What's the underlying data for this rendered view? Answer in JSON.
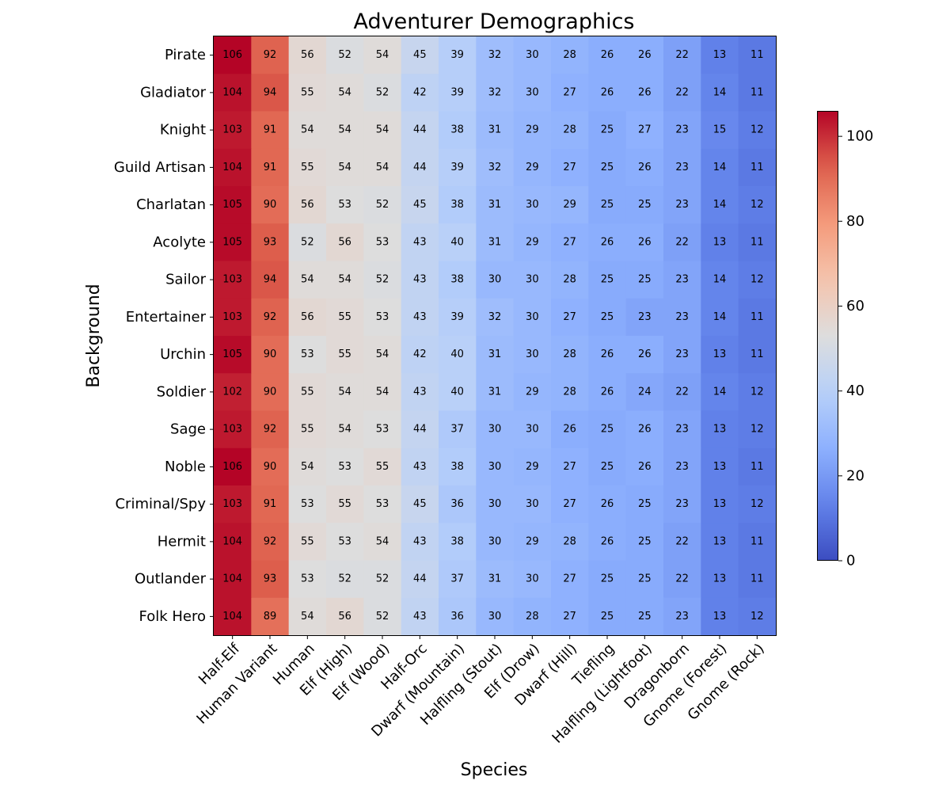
{
  "chart_data": {
    "type": "heatmap",
    "title": "Adventurer Demographics",
    "xlabel": "Species",
    "ylabel": "Background",
    "x_categories": [
      "Half-Elf",
      "Human Variant",
      "Human",
      "Elf (High)",
      "Elf (Wood)",
      "Half-Orc",
      "Dwarf (Mountain)",
      "Halfling (Stout)",
      "Elf (Drow)",
      "Dwarf (Hill)",
      "Tiefling",
      "Halfling (Lightfoot)",
      "Dragonborn",
      "Gnome (Forest)",
      "Gnome (Rock)"
    ],
    "y_categories": [
      "Pirate",
      "Gladiator",
      "Knight",
      "Guild Artisan",
      "Charlatan",
      "Acolyte",
      "Sailor",
      "Entertainer",
      "Urchin",
      "Soldier",
      "Sage",
      "Noble",
      "Criminal/Spy",
      "Hermit",
      "Outlander",
      "Folk Hero"
    ],
    "values": [
      [
        106,
        92,
        56,
        52,
        54,
        45,
        39,
        32,
        30,
        28,
        26,
        26,
        22,
        13,
        11
      ],
      [
        104,
        94,
        55,
        54,
        52,
        42,
        39,
        32,
        30,
        27,
        26,
        26,
        22,
        14,
        11
      ],
      [
        103,
        91,
        54,
        54,
        54,
        44,
        38,
        31,
        29,
        28,
        25,
        27,
        23,
        15,
        12
      ],
      [
        104,
        91,
        55,
        54,
        54,
        44,
        39,
        32,
        29,
        27,
        25,
        26,
        23,
        14,
        11
      ],
      [
        105,
        90,
        56,
        53,
        52,
        45,
        38,
        31,
        30,
        29,
        25,
        25,
        23,
        14,
        12
      ],
      [
        105,
        93,
        52,
        56,
        53,
        43,
        40,
        31,
        29,
        27,
        26,
        26,
        22,
        13,
        11
      ],
      [
        103,
        94,
        54,
        54,
        52,
        43,
        38,
        30,
        30,
        28,
        25,
        25,
        23,
        14,
        12
      ],
      [
        103,
        92,
        56,
        55,
        53,
        43,
        39,
        32,
        30,
        27,
        25,
        23,
        23,
        14,
        11
      ],
      [
        105,
        90,
        53,
        55,
        54,
        42,
        40,
        31,
        30,
        28,
        26,
        26,
        23,
        13,
        11
      ],
      [
        102,
        90,
        55,
        54,
        54,
        43,
        40,
        31,
        29,
        28,
        26,
        24,
        22,
        14,
        12
      ],
      [
        103,
        92,
        55,
        54,
        53,
        44,
        37,
        30,
        30,
        26,
        25,
        26,
        23,
        13,
        12
      ],
      [
        106,
        90,
        54,
        53,
        55,
        43,
        38,
        30,
        29,
        27,
        25,
        26,
        23,
        13,
        11
      ],
      [
        103,
        91,
        53,
        55,
        53,
        45,
        36,
        30,
        30,
        27,
        26,
        25,
        23,
        13,
        12
      ],
      [
        104,
        92,
        55,
        53,
        54,
        43,
        38,
        30,
        29,
        28,
        26,
        25,
        22,
        13,
        11
      ],
      [
        104,
        93,
        53,
        52,
        52,
        44,
        37,
        31,
        30,
        27,
        25,
        25,
        22,
        13,
        11
      ],
      [
        104,
        89,
        54,
        56,
        52,
        43,
        36,
        30,
        28,
        27,
        25,
        25,
        23,
        13,
        12
      ]
    ],
    "colormap": "coolwarm",
    "vmin": 0,
    "vmax": 106,
    "colorbar_ticks": [
      0,
      20,
      40,
      60,
      80,
      100
    ],
    "cell_annotations": true
  }
}
